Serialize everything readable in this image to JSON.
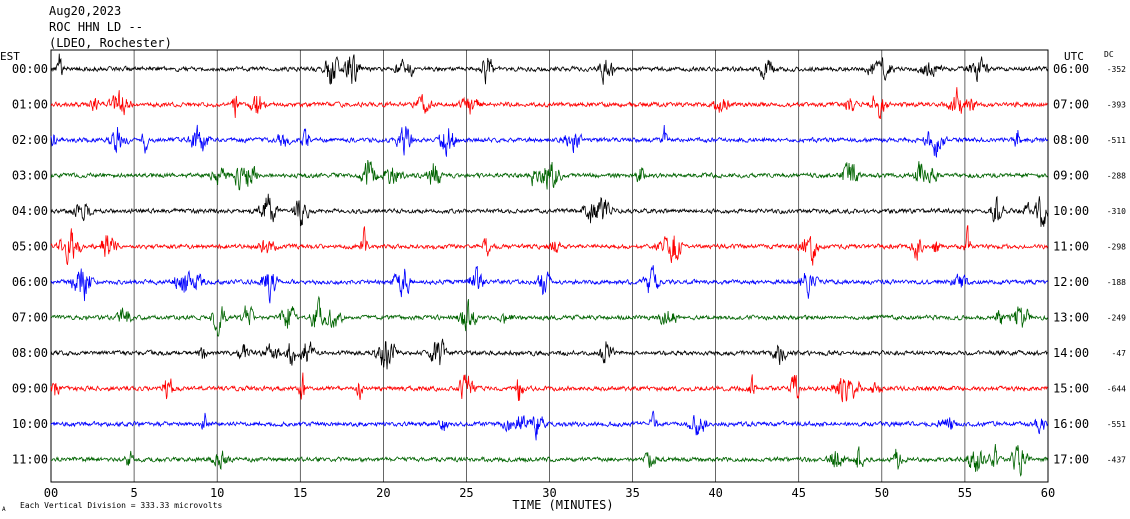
{
  "header": {
    "line1": "Aug20,2023",
    "line2": "ROC HHN LD --",
    "line3": "(LDEO, Rochester)"
  },
  "labels": {
    "left_tz": "EST",
    "right_tz": "UTC",
    "dc": "DC",
    "xlabel": "TIME (MINUTES)",
    "footnote": "Each Vertical Division =  333.33 microvolts",
    "footnote_mark": "A"
  },
  "chart_data": {
    "type": "line",
    "title": "",
    "xlabel": "TIME (MINUTES)",
    "ylabel": "",
    "xlim": [
      0,
      60
    ],
    "x_ticks": [
      0,
      5,
      10,
      15,
      20,
      25,
      30,
      35,
      40,
      45,
      50,
      55,
      60
    ],
    "x_tick_labels": [
      "00",
      "5",
      "10",
      "15",
      "20",
      "25",
      "30",
      "35",
      "40",
      "45",
      "50",
      "55",
      "60"
    ],
    "grid": true,
    "vertical_division_microvolts": 333.33,
    "rows": [
      {
        "left": "00:00",
        "right": "06:00",
        "dc": "-352",
        "color": "#000000"
      },
      {
        "left": "01:00",
        "right": "07:00",
        "dc": "-393",
        "color": "#ff0000"
      },
      {
        "left": "02:00",
        "right": "08:00",
        "dc": "-511",
        "color": "#0000ff"
      },
      {
        "left": "03:00",
        "right": "09:00",
        "dc": "-288",
        "color": "#006400"
      },
      {
        "left": "04:00",
        "right": "10:00",
        "dc": "-310",
        "color": "#000000"
      },
      {
        "left": "05:00",
        "right": "11:00",
        "dc": "-298",
        "color": "#ff0000"
      },
      {
        "left": "06:00",
        "right": "12:00",
        "dc": "-188",
        "color": "#0000ff"
      },
      {
        "left": "07:00",
        "right": "13:00",
        "dc": "-249",
        "color": "#006400"
      },
      {
        "left": "08:00",
        "right": "14:00",
        "dc": "-47",
        "color": "#000000"
      },
      {
        "left": "09:00",
        "right": "15:00",
        "dc": "-644",
        "color": "#ff0000"
      },
      {
        "left": "10:00",
        "right": "16:00",
        "dc": "-551",
        "color": "#0000ff"
      },
      {
        "left": "11:00",
        "right": "17:00",
        "dc": "-437",
        "color": "#006400"
      }
    ]
  }
}
